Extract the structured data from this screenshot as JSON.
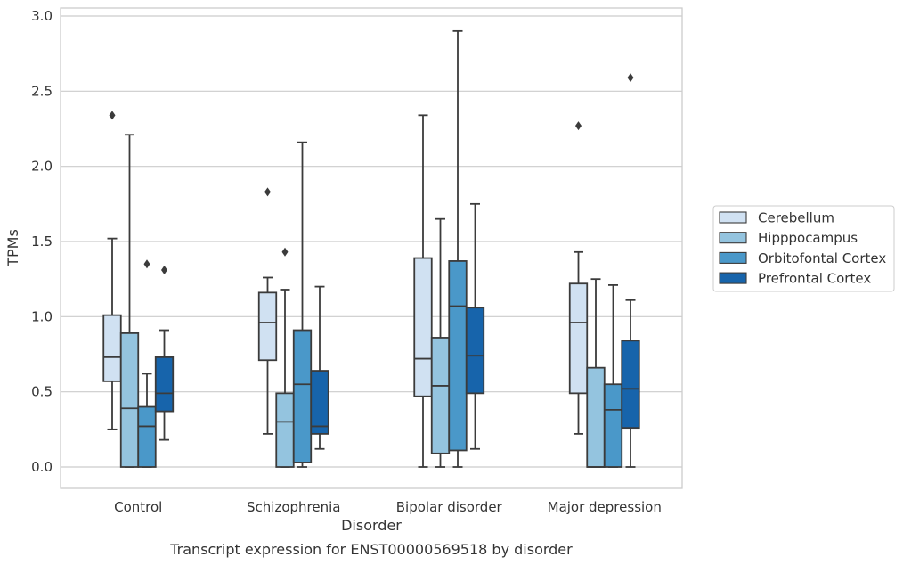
{
  "chart_data": {
    "type": "boxplot",
    "caption": "Transcript expression for ENST00000569518 by disorder",
    "xlabel": "Disorder",
    "ylabel": "TPMs",
    "ylim": [
      -0.14,
      3.05
    ],
    "yticks": [
      "0.0",
      "0.5",
      "1.0",
      "1.5",
      "2.0",
      "2.5",
      "3.0"
    ],
    "grid": "horizontal",
    "legend_position": "right",
    "categories": [
      "Control",
      "Schizophrenia",
      "Bipolar disorder",
      "Major depression"
    ],
    "series": [
      {
        "name": "Cerebellum",
        "color": "#d0e1f2",
        "boxes": [
          {
            "whislo": 0.25,
            "q1": 0.57,
            "med": 0.73,
            "q3": 1.01,
            "whishi": 1.52,
            "fliers": [
              2.34
            ]
          },
          {
            "whislo": 0.22,
            "q1": 0.71,
            "med": 0.96,
            "q3": 1.16,
            "whishi": 1.26,
            "fliers": [
              1.83
            ]
          },
          {
            "whislo": 0.0,
            "q1": 0.47,
            "med": 0.72,
            "q3": 1.39,
            "whishi": 2.34,
            "fliers": []
          },
          {
            "whislo": 0.22,
            "q1": 0.49,
            "med": 0.96,
            "q3": 1.22,
            "whishi": 1.43,
            "fliers": [
              2.27
            ]
          }
        ]
      },
      {
        "name": "Hipppocampus",
        "color": "#94c4df",
        "boxes": [
          {
            "whislo": 0.0,
            "q1": 0.0,
            "med": 0.39,
            "q3": 0.89,
            "whishi": 2.21,
            "fliers": []
          },
          {
            "whislo": 0.0,
            "q1": 0.0,
            "med": 0.3,
            "q3": 0.49,
            "whishi": 1.18,
            "fliers": [
              1.43
            ]
          },
          {
            "whislo": 0.0,
            "q1": 0.09,
            "med": 0.54,
            "q3": 0.86,
            "whishi": 1.65,
            "fliers": []
          },
          {
            "whislo": 0.0,
            "q1": 0.0,
            "med": 0.0,
            "q3": 0.66,
            "whishi": 1.25,
            "fliers": []
          }
        ]
      },
      {
        "name": "Orbitofontal Cortex",
        "color": "#4a98c9",
        "boxes": [
          {
            "whislo": 0.0,
            "q1": 0.0,
            "med": 0.27,
            "q3": 0.4,
            "whishi": 0.62,
            "fliers": [
              1.35
            ]
          },
          {
            "whislo": 0.0,
            "q1": 0.03,
            "med": 0.55,
            "q3": 0.91,
            "whishi": 2.16,
            "fliers": []
          },
          {
            "whislo": 0.0,
            "q1": 0.11,
            "med": 1.07,
            "q3": 1.37,
            "whishi": 2.9,
            "fliers": []
          },
          {
            "whislo": 0.0,
            "q1": 0.0,
            "med": 0.38,
            "q3": 0.55,
            "whishi": 1.21,
            "fliers": []
          }
        ]
      },
      {
        "name": "Prefrontal Cortex",
        "color": "#1764ab",
        "boxes": [
          {
            "whislo": 0.18,
            "q1": 0.37,
            "med": 0.49,
            "q3": 0.73,
            "whishi": 0.91,
            "fliers": [
              1.31
            ]
          },
          {
            "whislo": 0.12,
            "q1": 0.22,
            "med": 0.27,
            "q3": 0.64,
            "whishi": 1.2,
            "fliers": []
          },
          {
            "whislo": 0.12,
            "q1": 0.49,
            "med": 0.74,
            "q3": 1.06,
            "whishi": 1.75,
            "fliers": []
          },
          {
            "whislo": 0.0,
            "q1": 0.26,
            "med": 0.52,
            "q3": 0.84,
            "whishi": 1.11,
            "fliers": [
              2.59
            ]
          }
        ]
      }
    ]
  }
}
